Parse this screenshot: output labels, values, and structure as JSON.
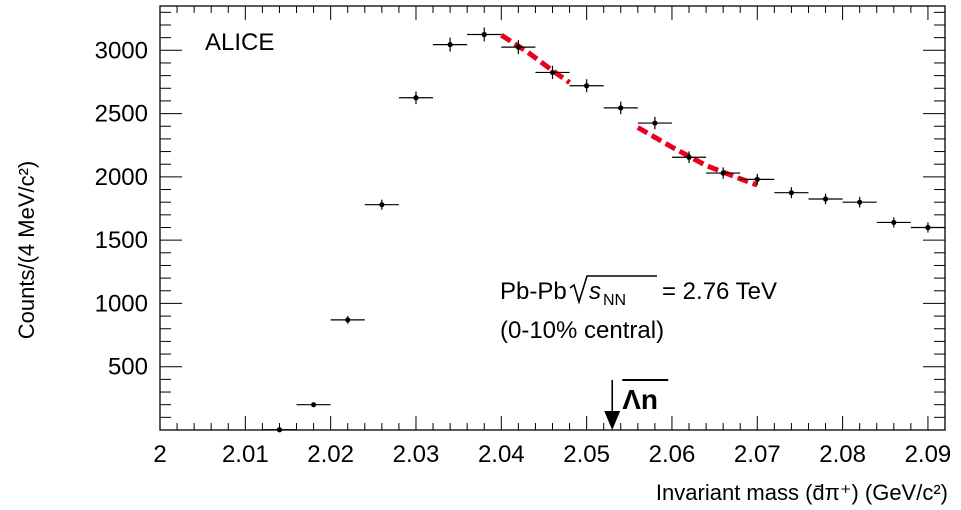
{
  "chart_data": {
    "type": "scatter",
    "experiment_label": "ALICE",
    "ylabel": "Counts/(4 MeV/c²)",
    "xlabel": "Invariant mass (d̄π⁺) (GeV/c²)",
    "xlim": [
      2.0,
      2.092
    ],
    "ylim": [
      0,
      3350
    ],
    "x_ticks": [
      2.0,
      2.01,
      2.02,
      2.03,
      2.04,
      2.05,
      2.06,
      2.07,
      2.08,
      2.09
    ],
    "x_tick_labels": [
      "2",
      "2.01",
      "2.02",
      "2.03",
      "2.04",
      "2.05",
      "2.06",
      "2.07",
      "2.08",
      "2.09"
    ],
    "y_ticks": [
      500,
      1000,
      1500,
      2000,
      2500,
      3000
    ],
    "y_tick_labels": [
      "500",
      "1000",
      "1500",
      "2000",
      "2500",
      "3000"
    ],
    "bin_half_width": 0.002,
    "series": [
      {
        "style": "points-with-errors",
        "x": [
          2.014,
          2.018,
          2.022,
          2.026,
          2.03,
          2.034,
          2.038,
          2.042,
          2.046,
          2.05,
          2.054,
          2.058,
          2.062,
          2.066,
          2.07,
          2.074,
          2.078,
          2.082,
          2.086,
          2.09
        ],
        "y": [
          2,
          200,
          870,
          1780,
          2625,
          3045,
          3125,
          3025,
          2825,
          2720,
          2545,
          2425,
          2155,
          2030,
          1980,
          1875,
          1825,
          1800,
          1640,
          1600
        ],
        "yerr": [
          2,
          15,
          30,
          40,
          50,
          55,
          55,
          55,
          52,
          51,
          50,
          49,
          46,
          45,
          44,
          43,
          42,
          42,
          40,
          40
        ]
      }
    ],
    "fit_curves": [
      {
        "color": "#e8001c",
        "style": "dashed",
        "x": [
          2.04,
          2.043,
          2.046,
          2.048
        ],
        "y": [
          3120,
          2990,
          2840,
          2745
        ]
      },
      {
        "color": "#e8001c",
        "style": "dashed",
        "x": [
          2.056,
          2.06,
          2.064,
          2.068,
          2.07
        ],
        "y": [
          2390,
          2235,
          2090,
          1985,
          1935
        ]
      }
    ],
    "annotations": {
      "system_prefix": "Pb-Pb",
      "sqrt_s_symbol": "s",
      "sqrt_s_subscript": "NN",
      "energy": "= 2.76 TeV",
      "centrality": "(0-10% central)"
    },
    "marker": {
      "x": 2.053,
      "label": "Λn",
      "overline": true
    },
    "grid": false,
    "colors": {
      "points": "#000000",
      "fit": "#e8001c"
    }
  }
}
